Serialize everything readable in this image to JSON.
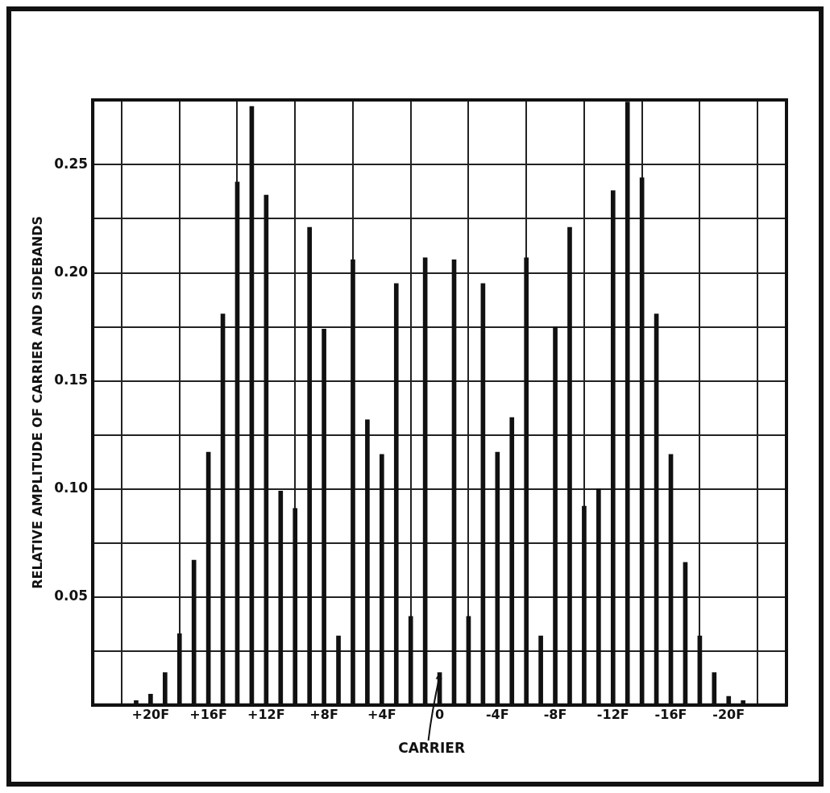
{
  "chart_data": {
    "type": "bar",
    "ylabel": "RELATIVE AMPLITUDE OF CARRIER AND SIDEBANDS",
    "x": [
      21,
      20,
      19,
      18,
      17,
      16,
      15,
      14,
      13,
      12,
      11,
      10,
      9,
      8,
      7,
      6,
      5,
      4,
      3,
      2,
      1,
      0,
      -1,
      -2,
      -3,
      -4,
      -5,
      -6,
      -7,
      -8,
      -9,
      -10,
      -11,
      -12,
      -13,
      -14,
      -15,
      -16,
      -17,
      -18,
      -19,
      -20,
      -21
    ],
    "values": [
      0.002,
      0.005,
      0.015,
      0.033,
      0.067,
      0.117,
      0.181,
      0.242,
      0.277,
      0.236,
      0.099,
      0.091,
      0.221,
      0.174,
      0.032,
      0.206,
      0.132,
      0.116,
      0.195,
      0.041,
      0.207,
      0.015,
      0.206,
      0.041,
      0.195,
      0.117,
      0.133,
      0.207,
      0.032,
      0.175,
      0.221,
      0.092,
      0.1,
      0.238,
      0.279,
      0.244,
      0.181,
      0.116,
      0.066,
      0.032,
      0.015,
      0.004,
      0.002
    ],
    "color": "#111111",
    "xlim": [
      24,
      -24
    ],
    "xticks": [
      {
        "value": 20,
        "label": "+20F"
      },
      {
        "value": 16,
        "label": "+16F"
      },
      {
        "value": 12,
        "label": "+12F"
      },
      {
        "value": 8,
        "label": "+8F"
      },
      {
        "value": 4,
        "label": "+4F"
      },
      0,
      {
        "value": -4,
        "label": "-4F"
      },
      {
        "value": -8,
        "label": "-8F"
      },
      {
        "value": -12,
        "label": "-12F"
      },
      {
        "value": -16,
        "label": "-16F"
      },
      {
        "value": -20,
        "label": "-20F"
      }
    ],
    "ylim": [
      0,
      0.28
    ],
    "yticks": [
      {
        "value": 0.025,
        "label": null
      },
      {
        "value": 0.05,
        "label": "0.05"
      },
      {
        "value": 0.075,
        "label": null
      },
      {
        "value": 0.1,
        "label": "0.10"
      },
      {
        "value": 0.125,
        "label": null
      },
      {
        "value": 0.15,
        "label": "0.15"
      },
      {
        "value": 0.175,
        "label": null
      },
      {
        "value": 0.2,
        "label": "0.20"
      },
      {
        "value": 0.225,
        "label": null
      },
      {
        "value": 0.25,
        "label": "0.25"
      }
    ],
    "grid": true,
    "annotations": [
      {
        "text": "CARRIER",
        "x": 0,
        "y": 0.015
      }
    ]
  }
}
